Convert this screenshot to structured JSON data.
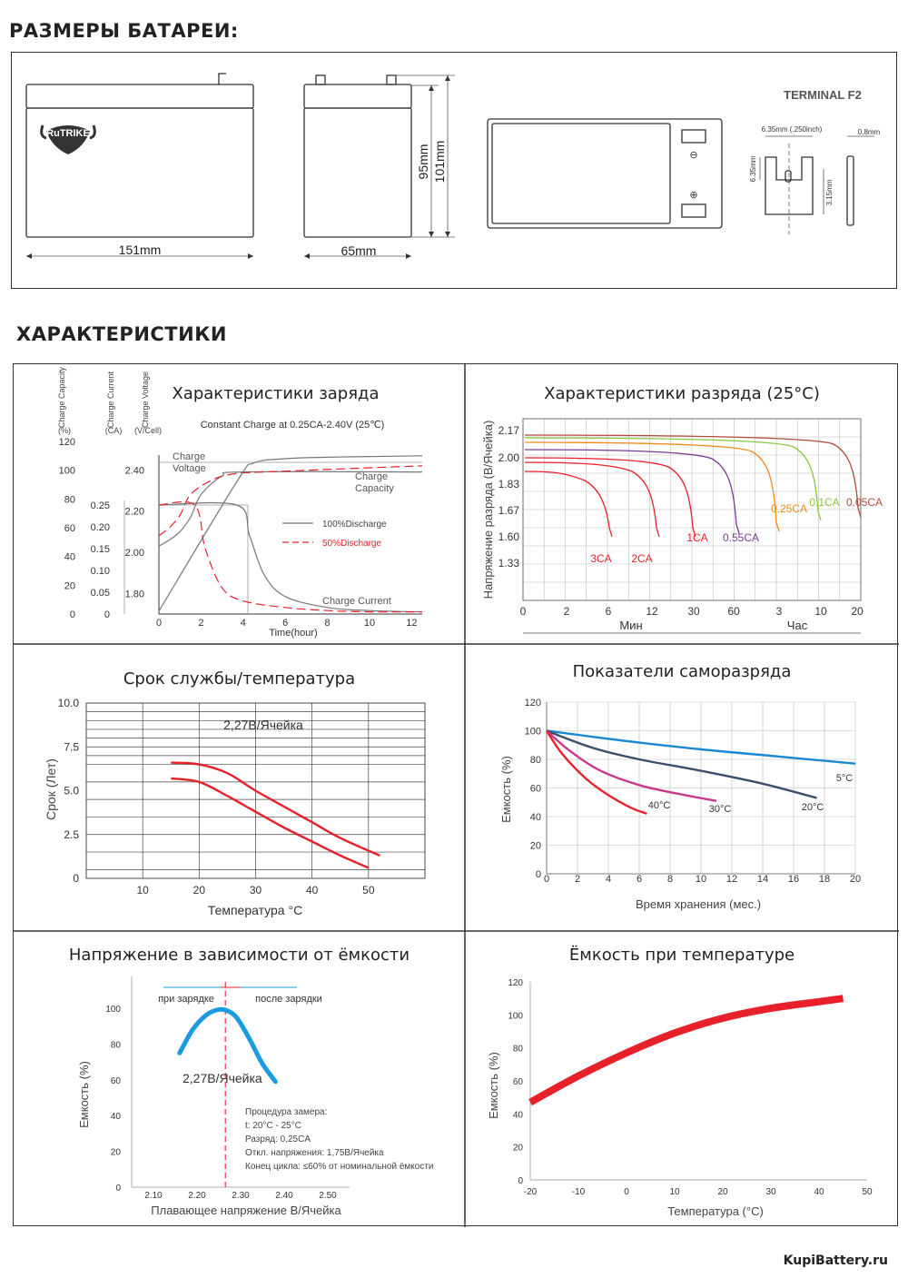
{
  "page": {
    "dimensions_title": "РАЗМЕРЫ БАТАРЕИ:",
    "characteristics_title": "ХАРАКТЕРИСТИКИ",
    "footer": "KupiBattery.ru"
  },
  "dimensions": {
    "brand": "RuTRIKE",
    "length": "151mm",
    "width": "65mm",
    "height": "95mm",
    "total_height": "101mm",
    "terminal_title": "TERMINAL  F2",
    "terminal_width": "6.35mm (.250inch)",
    "terminal_thickness": "0.8mm",
    "terminal_height": "6.35mm",
    "terminal_hole": "3.15mm",
    "minus": "⊖",
    "plus": "⊕"
  },
  "chart_data": [
    {
      "type": "line",
      "title": "Характеристики заряда",
      "subtitle": "Constant Charge at 0.25CA-2.40V  (25℃)",
      "axis_headers": [
        "Charge Capacity",
        "(%)",
        "Charge Current",
        "(CA)",
        "Charge Voltage",
        "(V/Cell)"
      ],
      "xlabel": "Time(hour)",
      "x_ticks": [
        0,
        2,
        4,
        6,
        8,
        10,
        12
      ],
      "capacity_ticks": [
        0,
        20,
        40,
        60,
        80,
        100,
        120
      ],
      "current_ticks": [
        "0",
        "0.05",
        "0.10",
        "0.15",
        "0.20",
        "0.25"
      ],
      "voltage_ticks": [
        "1.80",
        "2.00",
        "2.20",
        "2.40"
      ],
      "xlim": [
        0,
        12.5
      ],
      "annotations": [
        "Charge Voltage",
        "Charge Capacity",
        "Charge Current"
      ],
      "legend": [
        "100%Discharge",
        "50%Discharge"
      ],
      "series": [
        {
          "name": "Charge Voltage 100%Discharge",
          "x": [
            0,
            0.5,
            1,
            1.5,
            2,
            3,
            4,
            12.5
          ],
          "y_voltage": [
            2.03,
            2.06,
            2.1,
            2.17,
            2.28,
            2.37,
            2.39,
            2.39
          ]
        },
        {
          "name": "Charge Voltage 50%Discharge",
          "x": [
            0,
            0.5,
            1,
            1.5,
            2.5,
            3.5,
            5,
            12.5
          ],
          "y_voltage": [
            2.08,
            2.12,
            2.18,
            2.28,
            2.35,
            2.38,
            2.39,
            2.42
          ]
        },
        {
          "name": "Charge Capacity 100%Discharge",
          "x": [
            0,
            3.7,
            4.5,
            6,
            8,
            10,
            12.5
          ],
          "y_capacity": [
            2,
            92,
            105,
            108,
            109,
            109.5,
            110
          ]
        },
        {
          "name": "Charge Current 100%Discharge",
          "x": [
            0,
            3.7,
            4.3,
            5,
            6,
            8,
            10,
            12.5
          ],
          "y_current": [
            0.25,
            0.25,
            0.18,
            0.09,
            0.04,
            0.015,
            0.008,
            0.005
          ]
        },
        {
          "name": "Charge Current 50%Discharge",
          "x": [
            0,
            1.7,
            2.2,
            3,
            4,
            6,
            8,
            10,
            12.5
          ],
          "y_current": [
            0.25,
            0.25,
            0.15,
            0.06,
            0.03,
            0.015,
            0.008,
            0.005,
            0.005
          ]
        }
      ]
    },
    {
      "type": "line",
      "title": "Характеристики разряда (25°C)",
      "ylabel": "Напряжение разряда (В/Ячейка)",
      "y_ticks": [
        "1.33",
        "1.60",
        "1.67",
        "1.83",
        "2.00",
        "2.17"
      ],
      "x_ticks": [
        "0",
        "2",
        "6",
        "12",
        "30",
        "60",
        "3",
        "10",
        "20"
      ],
      "x_units": [
        "Мин",
        "Час"
      ],
      "series": [
        {
          "name": "3CA",
          "color": "#e8202a",
          "final_voltage": 1.6
        },
        {
          "name": "2CA",
          "color": "#e8202a",
          "final_voltage": 1.6
        },
        {
          "name": "1CA",
          "color": "#e8202a",
          "final_voltage": 1.6
        },
        {
          "name": "0.55CA",
          "color": "#7b3a96",
          "final_voltage": 1.63
        },
        {
          "name": "0.25CA",
          "color": "#f08a1c",
          "final_voltage": 1.65
        },
        {
          "name": "0.1CA",
          "color": "#8cc63f",
          "final_voltage": 1.75
        },
        {
          "name": "0.05CA",
          "color": "#b24a3a",
          "final_voltage": 1.78
        }
      ]
    },
    {
      "type": "line",
      "title": "Срок службы/температура",
      "annotation": "2,27В/Ячейка",
      "xlabel": "Температура °C",
      "ylabel": "Срок (Лет)",
      "x_ticks": [
        "10",
        "20",
        "30",
        "40",
        "50"
      ],
      "y_ticks": [
        "0",
        "2.5",
        "5.0",
        "7.5",
        "10.0"
      ],
      "xlim": [
        0,
        60
      ],
      "ylim": [
        0,
        10
      ],
      "series": [
        {
          "name": "upper",
          "x": [
            15,
            20,
            25,
            30,
            35,
            40,
            45,
            52
          ],
          "y": [
            6.6,
            6.5,
            6.0,
            5.0,
            4.1,
            3.2,
            2.3,
            1.3
          ]
        },
        {
          "name": "lower",
          "x": [
            15,
            20,
            25,
            30,
            35,
            40,
            45,
            50
          ],
          "y": [
            5.7,
            5.5,
            4.7,
            3.8,
            2.9,
            2.1,
            1.3,
            0.6
          ]
        }
      ]
    },
    {
      "type": "line",
      "title": "Показатели саморазряда",
      "xlabel": "Время хранения (мес.)",
      "ylabel": "Емкость (%)",
      "x_ticks": [
        "0",
        "2",
        "4",
        "6",
        "8",
        "10",
        "12",
        "14",
        "16",
        "18",
        "20"
      ],
      "y_ticks": [
        "0",
        "20",
        "40",
        "60",
        "80",
        "100",
        "120"
      ],
      "xlim": [
        0,
        20
      ],
      "ylim": [
        0,
        120
      ],
      "series": [
        {
          "name": "5°C",
          "color": "#1a88d2",
          "x": [
            0,
            5,
            10,
            15,
            20
          ],
          "y": [
            100,
            93,
            87,
            82,
            77
          ]
        },
        {
          "name": "20°C",
          "color": "#3c4e6e",
          "x": [
            0,
            3,
            6,
            10,
            14,
            17.5
          ],
          "y": [
            100,
            88,
            80,
            72,
            63,
            53
          ]
        },
        {
          "name": "30°C",
          "color": "#c8388c",
          "x": [
            0,
            1.5,
            3.5,
            6,
            8.5,
            11
          ],
          "y": [
            100,
            86,
            72,
            62,
            56,
            51
          ]
        },
        {
          "name": "40°C",
          "color": "#e8202a",
          "x": [
            0,
            1,
            2.5,
            4,
            5.5,
            6.5
          ],
          "y": [
            100,
            84,
            67,
            55,
            46,
            42
          ]
        }
      ]
    },
    {
      "type": "line",
      "title": "Напряжение в зависимости от ёмкости",
      "xlabel": "Плавающее напряжение В/Ячейка",
      "ylabel": "Емкость (%)",
      "x_ticks": [
        "2.10",
        "2.20",
        "2.30",
        "2.40",
        "2.50"
      ],
      "y_ticks": [
        "0",
        "20",
        "40",
        "60",
        "80",
        "100"
      ],
      "xlim": [
        2.05,
        2.55
      ],
      "ylim": [
        0,
        100
      ],
      "labels": [
        "при зарядке",
        "после зарядки"
      ],
      "annotation": "2,27В/Ячейка",
      "notes": [
        "Процедура замера:",
        "t: 20°C - 25°C",
        "Разряд: 0,25CA",
        "Откл. напряжения: 1,75В/Ячейка",
        "Конец цикла: ≤60% от номинальной ёмкости"
      ],
      "series": [
        {
          "name": "capacity",
          "color": "#1a9ae0",
          "x": [
            2.16,
            2.19,
            2.22,
            2.245,
            2.265,
            2.29,
            2.32,
            2.35,
            2.38
          ],
          "y": [
            75,
            88,
            96,
            99,
            99,
            95,
            83,
            69,
            59
          ]
        }
      ]
    },
    {
      "type": "line",
      "title": "Ёмкость при температуре",
      "xlabel": "Температура (°C)",
      "ylabel": "Емкость (%)",
      "x_ticks": [
        "-20",
        "-10",
        "0",
        "10",
        "20",
        "30",
        "40",
        "50"
      ],
      "y_ticks": [
        "0",
        "20",
        "40",
        "60",
        "80",
        "100",
        "120"
      ],
      "xlim": [
        -20,
        50
      ],
      "ylim": [
        0,
        120
      ],
      "series": [
        {
          "name": "capacity",
          "color": "#e8202a",
          "x": [
            -20,
            -10,
            0,
            10,
            20,
            30,
            40,
            45
          ],
          "y": [
            47,
            63,
            77,
            89,
            98,
            104,
            108,
            110
          ]
        }
      ]
    }
  ]
}
